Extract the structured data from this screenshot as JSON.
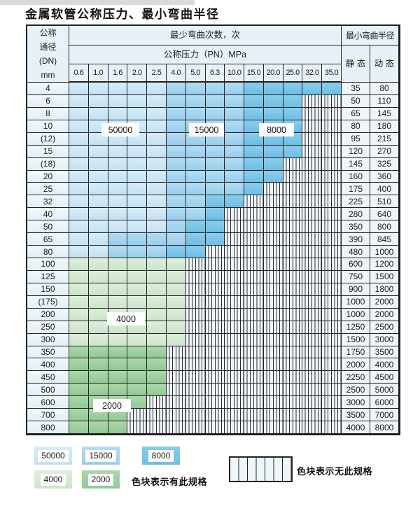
{
  "title": "金属软管公称压力、最小弯曲半径",
  "table": {
    "header": {
      "dn_lines": [
        "公称",
        "通径",
        "(DN)",
        "mm"
      ],
      "cycles_header": "最少弯曲次数，次",
      "radius_header": "最小弯曲半径",
      "pressure_header": "公称压力（PN）MPa",
      "pressure_columns": [
        "0.6",
        "1.0",
        "1.6",
        "2.0",
        "2.5",
        "4.0",
        "5.0",
        "6.3",
        "10.0",
        "15.0",
        "20.0",
        "25.0",
        "32.0",
        "35.0"
      ],
      "static_label": "静 态",
      "dynamic_label": "动 态"
    },
    "overlay_labels": {
      "l50000": "50000",
      "l15000": "15000",
      "l8000": "8000",
      "l4000": "4000",
      "l2000": "2000"
    },
    "rows": [
      {
        "dn": "4",
        "cats": [
          "50000",
          "50000",
          "50000",
          "50000",
          "50000",
          "15000",
          "15000",
          "15000",
          "15000",
          "8000",
          "8000",
          "8000",
          "8000",
          "8000"
        ],
        "static": "35",
        "dynamic": "80"
      },
      {
        "dn": "6",
        "cats": [
          "50000",
          "50000",
          "50000",
          "50000",
          "50000",
          "15000",
          "15000",
          "15000",
          "15000",
          "8000",
          "8000",
          "8000",
          "-",
          "-"
        ],
        "static": "50",
        "dynamic": "110"
      },
      {
        "dn": "8",
        "cats": [
          "50000",
          "50000",
          "50000",
          "50000",
          "50000",
          "15000",
          "15000",
          "15000",
          "15000",
          "8000",
          "8000",
          "8000",
          "-",
          "-"
        ],
        "static": "65",
        "dynamic": "145"
      },
      {
        "dn": "10",
        "cats": [
          "50000",
          "50000",
          "50000",
          "50000",
          "50000",
          "15000",
          "15000",
          "15000",
          "15000",
          "8000",
          "8000",
          "8000",
          "-",
          "-"
        ],
        "static": "80",
        "dynamic": "180"
      },
      {
        "dn": "(12)",
        "cats": [
          "50000",
          "50000",
          "50000",
          "50000",
          "50000",
          "15000",
          "15000",
          "15000",
          "15000",
          "8000",
          "8000",
          "8000",
          "-",
          "-"
        ],
        "static": "95",
        "dynamic": "215"
      },
      {
        "dn": "15",
        "cats": [
          "50000",
          "50000",
          "50000",
          "50000",
          "50000",
          "15000",
          "15000",
          "15000",
          "15000",
          "8000",
          "8000",
          "8000",
          "-",
          "-"
        ],
        "static": "120",
        "dynamic": "270"
      },
      {
        "dn": "(18)",
        "cats": [
          "50000",
          "50000",
          "50000",
          "50000",
          "50000",
          "15000",
          "15000",
          "15000",
          "15000",
          "8000",
          "8000",
          "-",
          "-",
          "-"
        ],
        "static": "145",
        "dynamic": "325"
      },
      {
        "dn": "20",
        "cats": [
          "50000",
          "50000",
          "50000",
          "50000",
          "50000",
          "15000",
          "15000",
          "15000",
          "15000",
          "8000",
          "8000",
          "-",
          "-",
          "-"
        ],
        "static": "160",
        "dynamic": "360"
      },
      {
        "dn": "25",
        "cats": [
          "50000",
          "50000",
          "50000",
          "50000",
          "50000",
          "15000",
          "15000",
          "15000",
          "15000",
          "8000",
          "-",
          "-",
          "-",
          "-"
        ],
        "static": "175",
        "dynamic": "400"
      },
      {
        "dn": "32",
        "cats": [
          "50000",
          "50000",
          "50000",
          "50000",
          "50000",
          "15000",
          "15000",
          "8000",
          "8000",
          "-",
          "-",
          "-",
          "-",
          "-"
        ],
        "static": "225",
        "dynamic": "510"
      },
      {
        "dn": "40",
        "cats": [
          "50000",
          "50000",
          "50000",
          "50000",
          "50000",
          "15000",
          "15000",
          "8000",
          "-",
          "-",
          "-",
          "-",
          "-",
          "-"
        ],
        "static": "280",
        "dynamic": "640"
      },
      {
        "dn": "50",
        "cats": [
          "50000",
          "50000",
          "50000",
          "50000",
          "50000",
          "15000",
          "8000",
          "8000",
          "-",
          "-",
          "-",
          "-",
          "-",
          "-"
        ],
        "static": "350",
        "dynamic": "800"
      },
      {
        "dn": "65",
        "cats": [
          "50000",
          "50000",
          "15000",
          "15000",
          "15000",
          "15000",
          "8000",
          "8000",
          "-",
          "-",
          "-",
          "-",
          "-",
          "-"
        ],
        "static": "390",
        "dynamic": "845"
      },
      {
        "dn": "80",
        "cats": [
          "50000",
          "50000",
          "15000",
          "15000",
          "15000",
          "8000",
          "8000",
          "-",
          "-",
          "-",
          "-",
          "-",
          "-",
          "-"
        ],
        "static": "480",
        "dynamic": "1000"
      },
      {
        "dn": "100",
        "cats": [
          "4000",
          "4000",
          "4000",
          "4000",
          "4000",
          "4000",
          "-",
          "-",
          "-",
          "-",
          "-",
          "-",
          "-",
          "-"
        ],
        "static": "600",
        "dynamic": "1200"
      },
      {
        "dn": "125",
        "cats": [
          "4000",
          "4000",
          "4000",
          "4000",
          "4000",
          "4000",
          "-",
          "-",
          "-",
          "-",
          "-",
          "-",
          "-",
          "-"
        ],
        "static": "750",
        "dynamic": "1500"
      },
      {
        "dn": "150",
        "cats": [
          "4000",
          "4000",
          "4000",
          "4000",
          "4000",
          "4000",
          "-",
          "-",
          "-",
          "-",
          "-",
          "-",
          "-",
          "-"
        ],
        "static": "900",
        "dynamic": "1800"
      },
      {
        "dn": "(175)",
        "cats": [
          "4000",
          "4000",
          "4000",
          "4000",
          "4000",
          "4000",
          "-",
          "-",
          "-",
          "-",
          "-",
          "-",
          "-",
          "-"
        ],
        "static": "1000",
        "dynamic": "2000"
      },
      {
        "dn": "200",
        "cats": [
          "4000",
          "4000",
          "4000",
          "4000",
          "4000",
          "4000",
          "-",
          "-",
          "-",
          "-",
          "-",
          "-",
          "-",
          "-"
        ],
        "static": "1000",
        "dynamic": "2000"
      },
      {
        "dn": "250",
        "cats": [
          "4000",
          "4000",
          "4000",
          "4000",
          "4000",
          "4000",
          "-",
          "-",
          "-",
          "-",
          "-",
          "-",
          "-",
          "-"
        ],
        "static": "1250",
        "dynamic": "2500"
      },
      {
        "dn": "300",
        "cats": [
          "4000",
          "4000",
          "4000",
          "4000",
          "4000",
          "4000",
          "-",
          "-",
          "-",
          "-",
          "-",
          "-",
          "-",
          "-"
        ],
        "static": "1500",
        "dynamic": "3000"
      },
      {
        "dn": "350",
        "cats": [
          "2000",
          "2000",
          "2000",
          "2000",
          "2000",
          "-",
          "-",
          "-",
          "-",
          "-",
          "-",
          "-",
          "-",
          "-"
        ],
        "static": "1750",
        "dynamic": "3500"
      },
      {
        "dn": "400",
        "cats": [
          "2000",
          "2000",
          "2000",
          "2000",
          "2000",
          "-",
          "-",
          "-",
          "-",
          "-",
          "-",
          "-",
          "-",
          "-"
        ],
        "static": "2000",
        "dynamic": "4000"
      },
      {
        "dn": "450",
        "cats": [
          "2000",
          "2000",
          "2000",
          "2000",
          "2000",
          "-",
          "-",
          "-",
          "-",
          "-",
          "-",
          "-",
          "-",
          "-"
        ],
        "static": "2250",
        "dynamic": "4500"
      },
      {
        "dn": "500",
        "cats": [
          "2000",
          "2000",
          "2000",
          "2000",
          "2000",
          "-",
          "-",
          "-",
          "-",
          "-",
          "-",
          "-",
          "-",
          "-"
        ],
        "static": "2500",
        "dynamic": "5000"
      },
      {
        "dn": "600",
        "cats": [
          "2000",
          "2000",
          "2000",
          "2000",
          "-",
          "-",
          "-",
          "-",
          "-",
          "-",
          "-",
          "-",
          "-",
          "-"
        ],
        "static": "3000",
        "dynamic": "6000"
      },
      {
        "dn": "700",
        "cats": [
          "2000",
          "2000",
          "2000",
          "-",
          "-",
          "-",
          "-",
          "-",
          "-",
          "-",
          "-",
          "-",
          "-",
          "-"
        ],
        "static": "3500",
        "dynamic": "7000"
      },
      {
        "dn": "800",
        "cats": [
          "2000",
          "2000",
          "2000",
          "-",
          "-",
          "-",
          "-",
          "-",
          "-",
          "-",
          "-",
          "-",
          "-",
          "-"
        ],
        "static": "4000",
        "dynamic": "8000"
      }
    ]
  },
  "legend": {
    "items": [
      {
        "label": "50000",
        "color": "#cde7f5"
      },
      {
        "label": "15000",
        "color": "#a6d7f0"
      },
      {
        "label": "8000",
        "color": "#7fc6e9"
      },
      {
        "label": "4000",
        "color": "#d7e9d7"
      },
      {
        "label": "2000",
        "color": "#9ed29e"
      }
    ],
    "has_spec_text": "色块表示有此规格",
    "no_spec_text": "色块表示无此规格"
  }
}
